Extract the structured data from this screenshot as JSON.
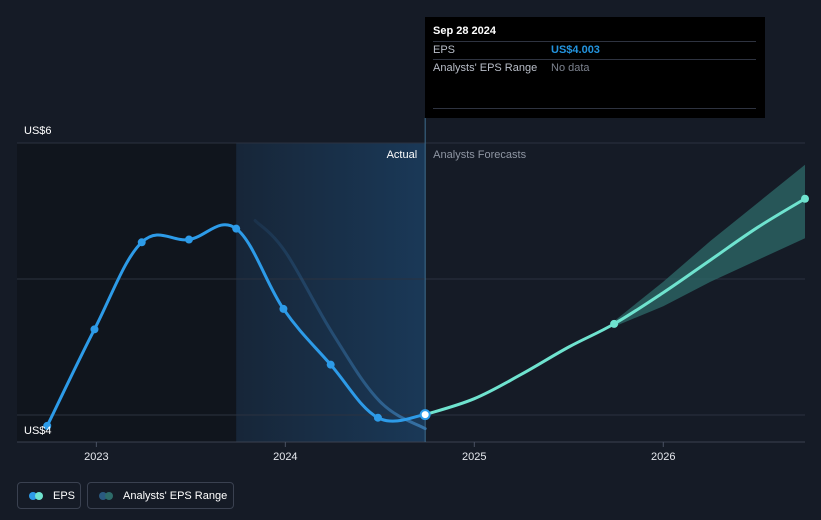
{
  "tooltip": {
    "date": "Sep 28 2024",
    "rows": [
      {
        "key": "EPS",
        "value": "US$4.003"
      },
      {
        "key": "Analysts' EPS Range",
        "value": "No data"
      }
    ]
  },
  "legend": {
    "items": [
      {
        "label": "EPS"
      },
      {
        "label": "Analysts' EPS Range"
      }
    ]
  },
  "colors": {
    "background": "#151b26",
    "past_shade": "#10151d",
    "actual_highlight": "#1a3a5a",
    "eps_actual": "#2d9be8",
    "eps_forecast": "#6fe3cf",
    "range_band": "#2d6b69",
    "grid": "#2b3240",
    "divider": "#3d6d8f"
  },
  "chart_data": {
    "type": "line",
    "title": "",
    "xlabel": "",
    "ylabel": "",
    "y_unit_prefix": "US$",
    "ylim": [
      4,
      6
    ],
    "y_ticks": [
      {
        "value": 6,
        "label": "US$6"
      },
      {
        "value": 4,
        "label": "US$4"
      }
    ],
    "x_ticks": [
      {
        "value": 2023.0,
        "label": "2023"
      },
      {
        "value": 2024.0,
        "label": "2024"
      },
      {
        "value": 2025.0,
        "label": "2025"
      },
      {
        "value": 2026.0,
        "label": "2026"
      }
    ],
    "xlim": [
      2022.58,
      2026.75
    ],
    "split_x": 2024.74,
    "highlight_start_x": 2023.74,
    "region_labels": {
      "actual": "Actual",
      "forecast": "Analysts Forecasts"
    },
    "series": [
      {
        "key": "eps_actual",
        "points": [
          {
            "x": 2022.74,
            "y": 3.92
          },
          {
            "x": 2022.99,
            "y": 4.63
          },
          {
            "x": 2023.24,
            "y": 5.27
          },
          {
            "x": 2023.49,
            "y": 5.29
          },
          {
            "x": 2023.74,
            "y": 5.37
          },
          {
            "x": 2023.99,
            "y": 4.78
          },
          {
            "x": 2024.24,
            "y": 4.37
          },
          {
            "x": 2024.49,
            "y": 3.98
          },
          {
            "x": 2024.74,
            "y": 4.003
          }
        ],
        "markers": [
          2022.74,
          2022.99,
          2023.24,
          2023.49,
          2023.74,
          2023.99,
          2024.24,
          2024.49,
          2024.74
        ]
      },
      {
        "key": "eps_forecast",
        "points": [
          {
            "x": 2024.74,
            "y": 4.003
          },
          {
            "x": 2025.0,
            "y": 4.12
          },
          {
            "x": 2025.25,
            "y": 4.3
          },
          {
            "x": 2025.5,
            "y": 4.5
          },
          {
            "x": 2025.74,
            "y": 4.67
          },
          {
            "x": 2026.0,
            "y": 4.9
          },
          {
            "x": 2026.25,
            "y": 5.14
          },
          {
            "x": 2026.5,
            "y": 5.38
          },
          {
            "x": 2026.75,
            "y": 5.59
          }
        ],
        "markers": [
          2024.74,
          2025.74,
          2026.75
        ]
      }
    ],
    "range_band": {
      "upper": [
        {
          "x": 2025.74,
          "y": 4.69
        },
        {
          "x": 2026.0,
          "y": 4.98
        },
        {
          "x": 2026.25,
          "y": 5.28
        },
        {
          "x": 2026.5,
          "y": 5.56
        },
        {
          "x": 2026.75,
          "y": 5.84
        }
      ],
      "lower": [
        {
          "x": 2025.74,
          "y": 4.65
        },
        {
          "x": 2026.0,
          "y": 4.8
        },
        {
          "x": 2026.25,
          "y": 4.98
        },
        {
          "x": 2026.5,
          "y": 5.14
        },
        {
          "x": 2026.75,
          "y": 5.3
        }
      ]
    },
    "past_estimate_line": {
      "points": [
        {
          "x": 2023.84,
          "y": 5.43
        },
        {
          "x": 2024.0,
          "y": 5.2
        },
        {
          "x": 2024.25,
          "y": 4.6
        },
        {
          "x": 2024.5,
          "y": 4.1
        },
        {
          "x": 2024.74,
          "y": 3.9
        }
      ]
    }
  }
}
